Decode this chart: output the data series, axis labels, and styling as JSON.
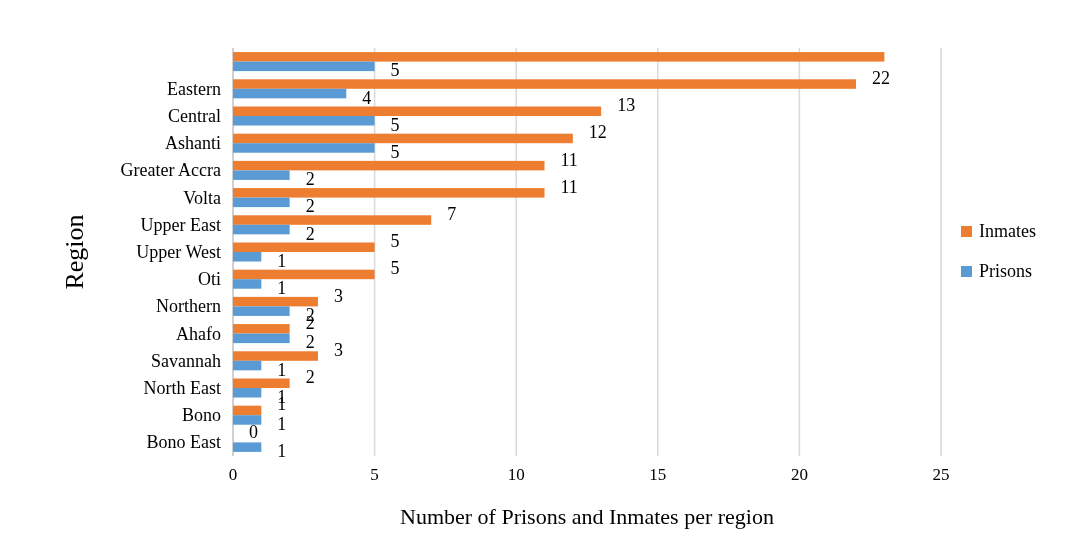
{
  "chart_data": {
    "type": "bar",
    "orientation": "horizontal",
    "xlabel": "Number of Prisons and Inmates per region",
    "ylabel": "Region",
    "categories": [
      null,
      "Eastern",
      "Central",
      "Ashanti",
      "Greater Accra",
      "Volta",
      "Upper East",
      "Upper West",
      "Oti",
      "Northern",
      "Ahafo",
      "Savannah",
      "North East",
      "Bono",
      "Bono East"
    ],
    "series": [
      {
        "name": "Inmates",
        "color": "#ed7d31",
        "values": [
          23,
          22,
          13,
          12,
          11,
          11,
          7,
          5,
          5,
          3,
          2,
          3,
          2,
          1,
          0
        ],
        "value_labels": [
          null,
          "22",
          "13",
          "12",
          "11",
          "11",
          "7",
          "5",
          "5",
          "3",
          "2",
          "3",
          "2",
          "1",
          "0"
        ]
      },
      {
        "name": "Prisons",
        "color": "#5b9bd5",
        "values": [
          5,
          4,
          5,
          5,
          2,
          2,
          2,
          1,
          1,
          2,
          2,
          1,
          1,
          1,
          1
        ],
        "value_labels": [
          "5",
          "4",
          "5",
          "5",
          "2",
          "2",
          "2",
          "1",
          "1",
          "2",
          "2",
          "1",
          "1",
          "1",
          "1"
        ]
      }
    ],
    "xlim": [
      0,
      25
    ],
    "xticks": [
      0,
      5,
      10,
      15,
      20,
      25
    ],
    "grid": "x",
    "legend": "right"
  }
}
